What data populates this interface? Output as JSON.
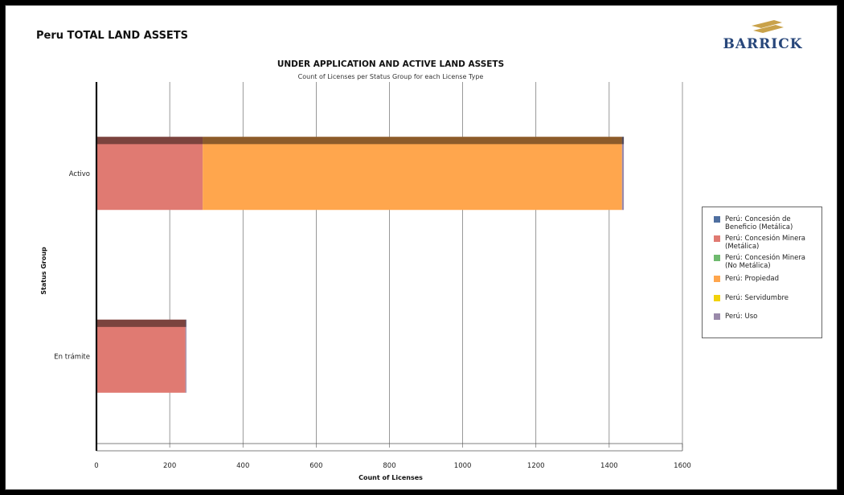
{
  "page": {
    "title": "Peru TOTAL LAND ASSETS",
    "logo_text": "BARRICK"
  },
  "chart_data": {
    "type": "bar",
    "orientation": "horizontal",
    "stacked": true,
    "title": "UNDER APPLICATION AND ACTIVE LAND ASSETS",
    "subtitle": "Count of Licenses per Status Group for each License Type",
    "xlabel": "Count of Licenses",
    "ylabel": "Status Group",
    "xlim": [
      0,
      1600
    ],
    "xticks": [
      0,
      200,
      400,
      600,
      800,
      1000,
      1200,
      1400,
      1600
    ],
    "categories": [
      "Activo",
      "En trámite"
    ],
    "grid": "vertical",
    "legend_position": "right",
    "series": [
      {
        "name": "Perú: Concesión de Beneficio (Metálica)",
        "color": "#4f6fa0",
        "values": [
          0,
          0
        ]
      },
      {
        "name": "Perú: Concesión Minera (Metálica)",
        "color": "#e07a72",
        "values": [
          290,
          243
        ]
      },
      {
        "name": "Perú: Concesión Minera (No Metálica)",
        "color": "#6fba6f",
        "values": [
          0,
          0
        ]
      },
      {
        "name": "Perú: Propiedad",
        "color": "#ffa64d",
        "values": [
          1145,
          0
        ]
      },
      {
        "name": "Perú: Servidumbre",
        "color": "#f2d20a",
        "values": [
          0,
          0
        ]
      },
      {
        "name": "Perú: Uso",
        "color": "#9a8aaa",
        "values": [
          5,
          2
        ]
      }
    ],
    "legend_labels": [
      "Perú: Concesión de\nBeneficio (Metálica)",
      "Perú: Concesión Minera\n(Metálica)",
      "Perú: Concesión Minera\n(No Metálica)",
      "Perú: Propiedad",
      "Perú: Servidumbre",
      "Perú: Uso"
    ]
  }
}
